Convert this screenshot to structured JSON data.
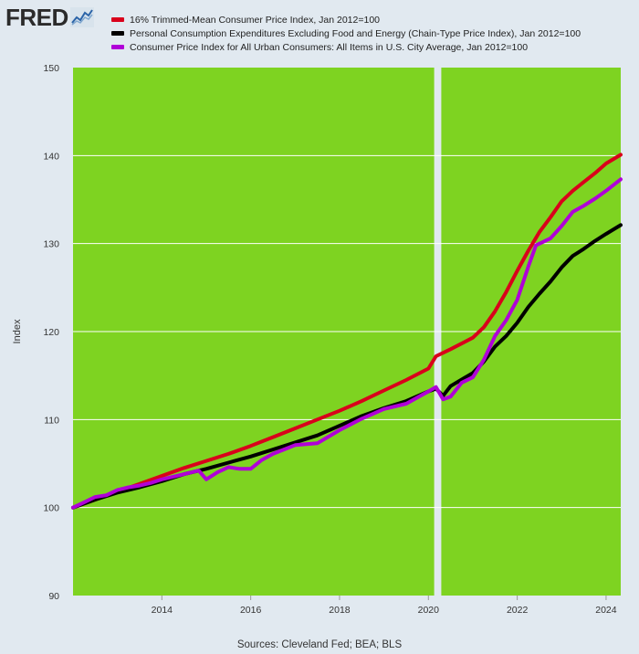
{
  "header": {
    "logo_text": "FRED"
  },
  "source_text": "Sources: Cleveland Fed; BEA; BLS",
  "colors": {
    "page_background": "#e1e9f0",
    "plot_background": "#7ed321",
    "recession_band": "#e1e9f0",
    "trimmed_mean": "#d9001b",
    "core_pce": "#000000",
    "cpi": "#b000d8"
  },
  "chart_data": {
    "type": "line",
    "title": "",
    "xlabel": "",
    "ylabel": "Index",
    "xlim": [
      2012.0,
      2024.33
    ],
    "ylim": [
      90,
      150
    ],
    "yticks": [
      90,
      100,
      110,
      120,
      130,
      140,
      150
    ],
    "xticks": [
      2014,
      2016,
      2018,
      2020,
      2022,
      2024
    ],
    "grid": true,
    "legend_position": "top",
    "recession_shading": [
      [
        2020.13,
        2020.29
      ]
    ],
    "series": [
      {
        "name": "16% Trimmed-Mean Consumer Price Index, Jan 2012=100",
        "color": "#d9001b",
        "x": [
          2012.0,
          2012.5,
          2013.0,
          2013.5,
          2014.0,
          2014.5,
          2015.0,
          2015.5,
          2016.0,
          2016.5,
          2017.0,
          2017.5,
          2018.0,
          2018.5,
          2019.0,
          2019.5,
          2020.0,
          2020.17,
          2020.5,
          2021.0,
          2021.25,
          2021.5,
          2021.75,
          2022.0,
          2022.25,
          2022.5,
          2022.75,
          2023.0,
          2023.25,
          2023.5,
          2023.75,
          2024.0,
          2024.33
        ],
        "y": [
          100.0,
          100.9,
          101.8,
          102.7,
          103.6,
          104.5,
          105.3,
          106.1,
          107.0,
          108.0,
          109.0,
          110.0,
          111.0,
          112.1,
          113.3,
          114.5,
          115.8,
          117.2,
          118.0,
          119.3,
          120.5,
          122.3,
          124.5,
          126.9,
          129.2,
          131.3,
          133.0,
          134.8,
          136.0,
          137.0,
          138.0,
          139.1,
          140.1
        ]
      },
      {
        "name": "Personal Consumption Expenditures Excluding Food and Energy (Chain-Type Price Index), Jan 2012=100",
        "color": "#000000",
        "x": [
          2012.0,
          2012.5,
          2013.0,
          2013.5,
          2014.0,
          2014.5,
          2015.0,
          2015.5,
          2016.0,
          2016.5,
          2017.0,
          2017.5,
          2018.0,
          2018.5,
          2019.0,
          2019.5,
          2020.0,
          2020.17,
          2020.33,
          2020.5,
          2021.0,
          2021.25,
          2021.5,
          2021.75,
          2022.0,
          2022.25,
          2022.5,
          2022.75,
          2023.0,
          2023.25,
          2023.5,
          2023.75,
          2024.0,
          2024.33
        ],
        "y": [
          100.0,
          100.9,
          101.7,
          102.3,
          103.0,
          103.8,
          104.4,
          105.1,
          105.8,
          106.6,
          107.4,
          108.2,
          109.3,
          110.4,
          111.3,
          112.1,
          113.2,
          113.5,
          112.7,
          113.8,
          115.3,
          116.6,
          118.3,
          119.5,
          121.0,
          122.8,
          124.3,
          125.7,
          127.3,
          128.6,
          129.4,
          130.3,
          131.1,
          132.1
        ]
      },
      {
        "name": "Consumer Price Index for All Urban Consumers: All Items in U.S. City Average, Jan 2012=100",
        "color": "#b000d8",
        "x": [
          2012.0,
          2012.25,
          2012.5,
          2012.75,
          2013.0,
          2013.25,
          2013.5,
          2013.75,
          2014.0,
          2014.5,
          2014.83,
          2015.0,
          2015.25,
          2015.5,
          2015.75,
          2016.0,
          2016.25,
          2016.5,
          2016.75,
          2017.0,
          2017.5,
          2018.0,
          2018.5,
          2019.0,
          2019.5,
          2020.0,
          2020.17,
          2020.33,
          2020.5,
          2020.75,
          2021.0,
          2021.25,
          2021.5,
          2021.75,
          2022.0,
          2022.25,
          2022.42,
          2022.75,
          2023.0,
          2023.25,
          2023.5,
          2023.75,
          2024.0,
          2024.33
        ],
        "y": [
          100.0,
          100.6,
          101.2,
          101.4,
          102.0,
          102.3,
          102.5,
          102.8,
          103.2,
          103.8,
          104.2,
          103.2,
          104.0,
          104.6,
          104.4,
          104.4,
          105.4,
          106.1,
          106.6,
          107.1,
          107.3,
          108.8,
          110.1,
          111.2,
          111.8,
          113.2,
          113.7,
          112.3,
          112.6,
          114.2,
          114.8,
          116.8,
          119.5,
          121.3,
          123.6,
          127.4,
          129.8,
          130.6,
          132.0,
          133.6,
          134.3,
          135.1,
          136.0,
          137.3
        ]
      }
    ]
  }
}
